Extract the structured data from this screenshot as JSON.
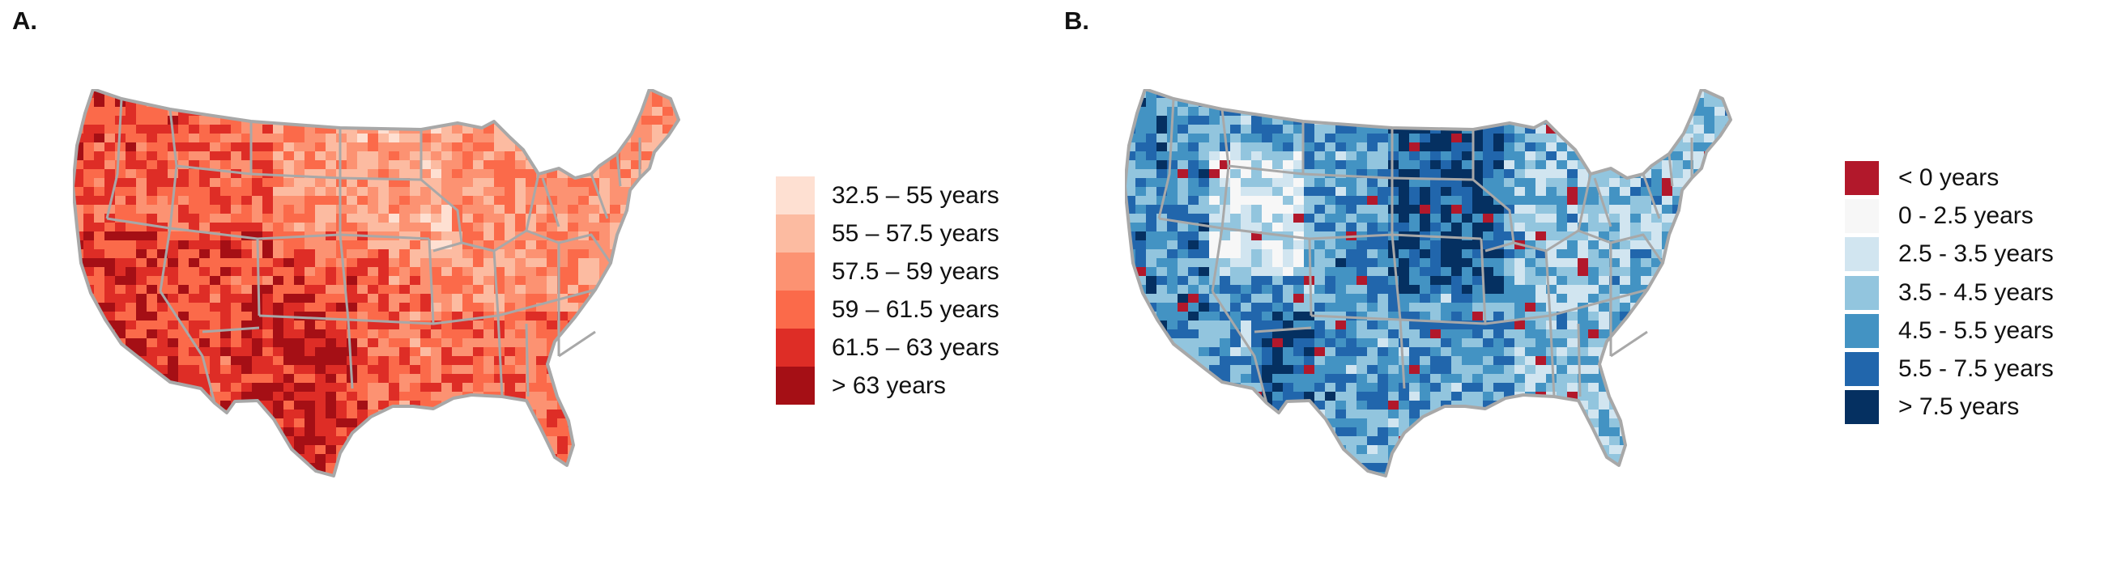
{
  "panels": [
    {
      "label": "A.",
      "legend": [
        {
          "label": "32.5 – 55 years",
          "color": "#fee0d2"
        },
        {
          "label": "55 – 57.5 years",
          "color": "#fcbba1"
        },
        {
          "label": "57.5 – 59 years",
          "color": "#fc9272"
        },
        {
          "label": "59 – 61.5 years",
          "color": "#fb6a4a"
        },
        {
          "label": "61.5 – 63 years",
          "color": "#de2d26"
        },
        {
          "label": "> 63 years",
          "color": "#a50f15"
        }
      ]
    },
    {
      "label": "B.",
      "legend": [
        {
          "label": "< 0 years",
          "color": "#b2182b"
        },
        {
          "label": "0 - 2.5 years",
          "color": "#f7f7f7"
        },
        {
          "label": "2.5 - 3.5 years",
          "color": "#d1e5f0"
        },
        {
          "label": "3.5 - 4.5 years",
          "color": "#92c5de"
        },
        {
          "label": "4.5 - 5.5 years",
          "color": "#4393c3"
        },
        {
          "label": "5.5 - 7.5 years",
          "color": "#2166ac"
        },
        {
          "label": "> 7.5 years",
          "color": "#053061"
        }
      ]
    }
  ],
  "map_style": {
    "border_color": "#a8a8a8"
  }
}
